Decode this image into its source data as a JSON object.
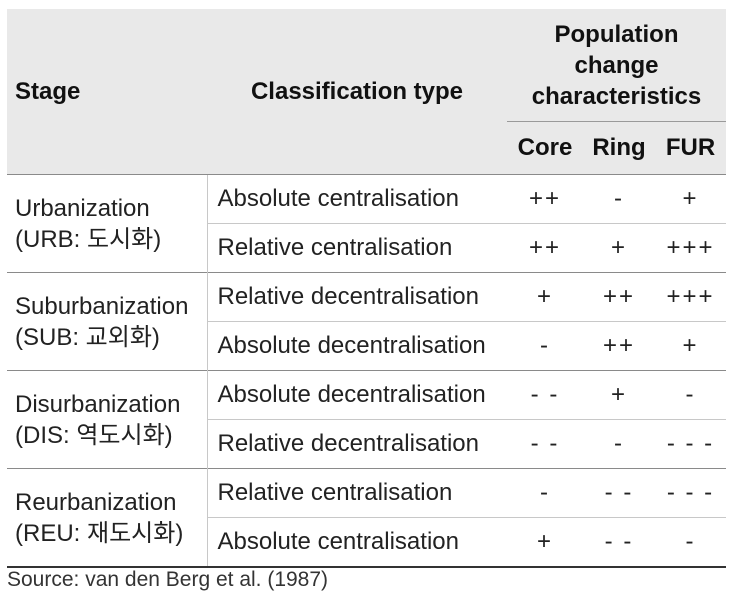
{
  "header": {
    "stage": "Stage",
    "classification_type": "Classification type",
    "population_change": [
      "Population",
      "change",
      "characteristics"
    ],
    "sub_columns": [
      "Core",
      "Ring",
      "FUR"
    ]
  },
  "groups": [
    {
      "stage": "Urbanization",
      "stage_note": "(URB: 도시화)",
      "rows": [
        {
          "type": "Absolute centralisation",
          "core": "++",
          "ring": "-",
          "fur": "+"
        },
        {
          "type": "Relative centralisation",
          "core": "++",
          "ring": "+",
          "fur": "+++"
        }
      ]
    },
    {
      "stage": "Suburbanization",
      "stage_note": "(SUB: 교외화)",
      "rows": [
        {
          "type": "Relative decentralisation",
          "core": "+",
          "ring": "++",
          "fur": "+++"
        },
        {
          "type": "Absolute decentralisation",
          "core": "-",
          "ring": "++",
          "fur": "+"
        }
      ]
    },
    {
      "stage": "Disurbanization",
      "stage_note": "(DIS: 역도시화)",
      "rows": [
        {
          "type": "Absolute decentralisation",
          "core": "- -",
          "ring": "+",
          "fur": "-"
        },
        {
          "type": "Relative decentralisation",
          "core": "- -",
          "ring": "-",
          "fur": "- - -"
        }
      ]
    },
    {
      "stage": "Reurbanization",
      "stage_note": "(REU: 재도시화)",
      "rows": [
        {
          "type": "Relative centralisation",
          "core": "-",
          "ring": "- -",
          "fur": "- - -"
        },
        {
          "type": "Absolute centralisation",
          "core": "+",
          "ring": "- -",
          "fur": "-"
        }
      ]
    }
  ],
  "source": "Source: van den Berg et al. (1987)"
}
